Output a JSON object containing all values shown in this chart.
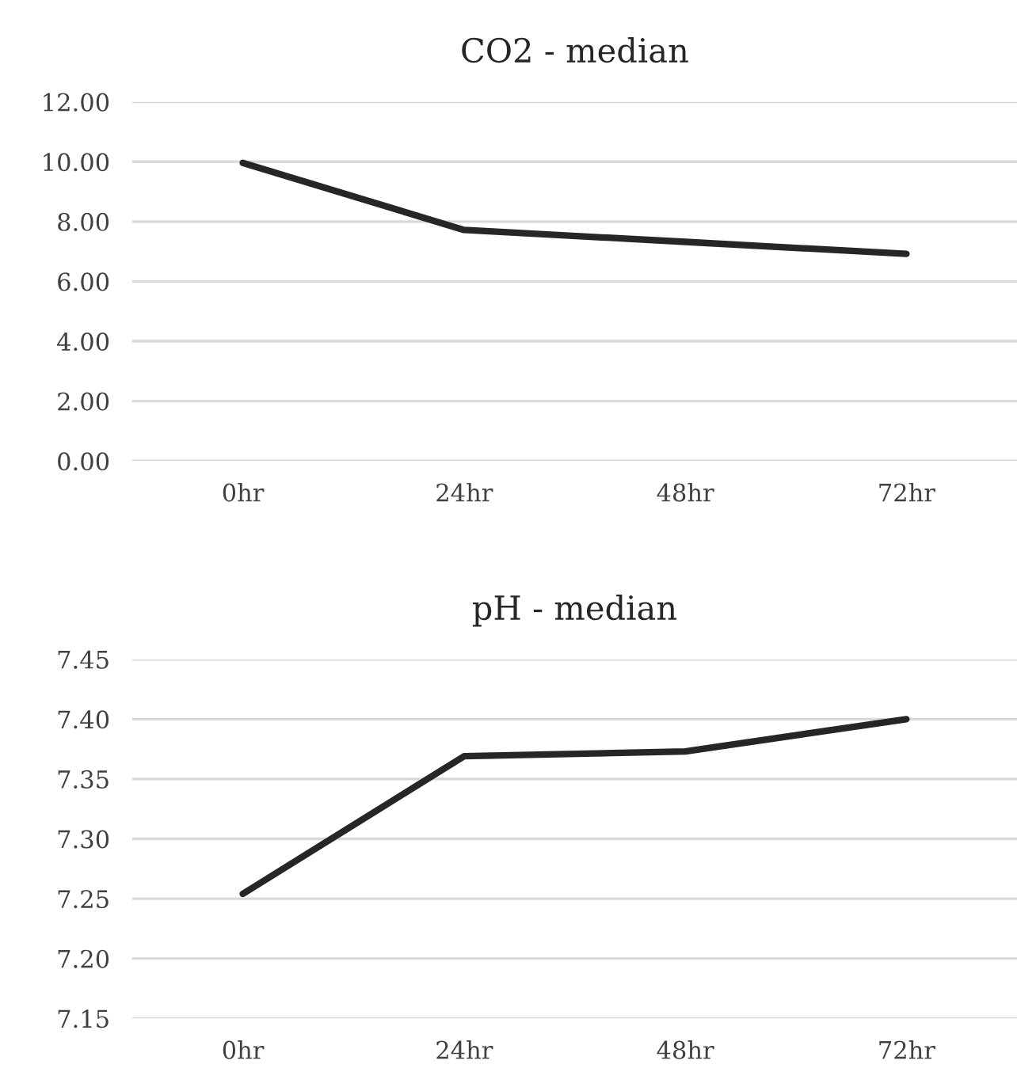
{
  "chart_data": [
    {
      "type": "line",
      "title": "CO2 - median",
      "categories": [
        "0hr",
        "24hr",
        "48hr",
        "72hr"
      ],
      "series": [
        {
          "color": "#262626",
          "values": [
            9.96,
            7.72,
            7.32,
            6.92
          ]
        }
      ],
      "ylim": [
        0,
        12
      ],
      "yticks": [
        {
          "value": 0,
          "label": "0.00"
        },
        {
          "value": 2,
          "label": "2.00"
        },
        {
          "value": 4,
          "label": "4.00"
        },
        {
          "value": 6,
          "label": "6.00"
        },
        {
          "value": 8,
          "label": "8.00"
        },
        {
          "value": 10,
          "label": "10.00"
        },
        {
          "value": 12,
          "label": "12.00"
        }
      ],
      "grid": "y",
      "marker": "none",
      "line_style": "solid"
    },
    {
      "type": "line",
      "title": "pH - median",
      "categories": [
        "0hr",
        "24hr",
        "48hr",
        "72hr"
      ],
      "series": [
        {
          "color": "#262626",
          "values": [
            7.254,
            7.369,
            7.373,
            7.4
          ]
        }
      ],
      "ylim": [
        7.15,
        7.45
      ],
      "yticks": [
        {
          "value": 7.15,
          "label": "7.15"
        },
        {
          "value": 7.2,
          "label": "7.20"
        },
        {
          "value": 7.25,
          "label": "7.25"
        },
        {
          "value": 7.3,
          "label": "7.30"
        },
        {
          "value": 7.35,
          "label": "7.35"
        },
        {
          "value": 7.4,
          "label": "7.40"
        },
        {
          "value": 7.45,
          "label": "7.45"
        }
      ],
      "grid": "y",
      "marker": "none",
      "line_style": "solid"
    }
  ]
}
